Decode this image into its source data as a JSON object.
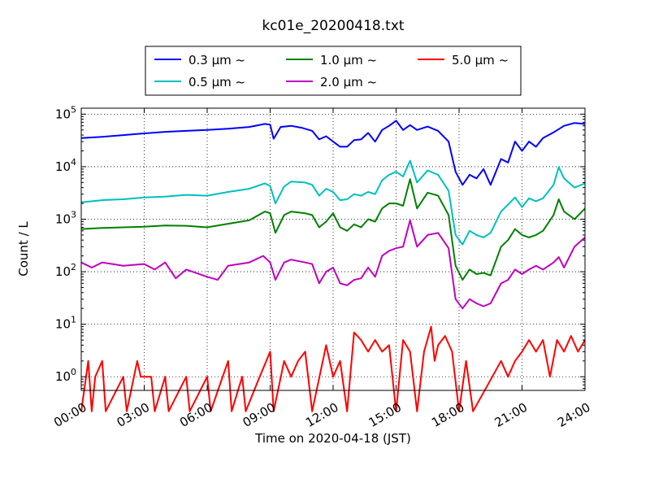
{
  "chart_data": {
    "type": "line",
    "title": "kc01e_20200418.txt",
    "xlabel": "Time on 2020-04-18 (JST)",
    "ylabel": "Count / L",
    "y_scale": "log",
    "ylim": [
      0.55,
      130000
    ],
    "xlim": [
      "00:00",
      "24:00"
    ],
    "x_ticks": [
      "00:00",
      "03:00",
      "06:00",
      "09:00",
      "12:00",
      "15:00",
      "18:00",
      "21:00",
      "24:00"
    ],
    "y_ticks": [
      {
        "value": 1,
        "base": "10",
        "exp": "0"
      },
      {
        "value": 10,
        "base": "10",
        "exp": "1"
      },
      {
        "value": 100,
        "base": "10",
        "exp": "2"
      },
      {
        "value": 1000,
        "base": "10",
        "exp": "3"
      },
      {
        "value": 10000,
        "base": "10",
        "exp": "4"
      },
      {
        "value": 100000,
        "base": "10",
        "exp": "5"
      }
    ],
    "grid": true,
    "legend_position": "top-center",
    "legend_entries_layout": [
      [
        "0.3",
        "1.0",
        "5.0"
      ],
      [
        "0.5",
        "2.0"
      ]
    ],
    "series": [
      {
        "name": "0.3 μm ~",
        "legend_value": "0.3",
        "color": "#0000ff",
        "points": [
          [
            "00:00",
            35000
          ],
          [
            "01:00",
            37000
          ],
          [
            "02:00",
            40000
          ],
          [
            "03:00",
            43000
          ],
          [
            "04:00",
            46000
          ],
          [
            "05:00",
            48000
          ],
          [
            "06:00",
            50000
          ],
          [
            "07:00",
            53000
          ],
          [
            "08:00",
            57000
          ],
          [
            "08:45",
            65000
          ],
          [
            "09:00",
            63000
          ],
          [
            "09:10",
            34000
          ],
          [
            "09:30",
            57000
          ],
          [
            "10:00",
            60000
          ],
          [
            "10:30",
            55000
          ],
          [
            "11:00",
            48000
          ],
          [
            "11:20",
            33000
          ],
          [
            "11:40",
            38000
          ],
          [
            "12:00",
            30000
          ],
          [
            "12:20",
            24000
          ],
          [
            "12:40",
            24000
          ],
          [
            "13:00",
            32000
          ],
          [
            "13:20",
            33000
          ],
          [
            "13:40",
            44000
          ],
          [
            "14:00",
            30000
          ],
          [
            "14:20",
            50000
          ],
          [
            "14:40",
            60000
          ],
          [
            "15:00",
            75000
          ],
          [
            "15:20",
            50000
          ],
          [
            "15:40",
            62000
          ],
          [
            "16:00",
            50000
          ],
          [
            "16:30",
            58000
          ],
          [
            "17:00",
            48000
          ],
          [
            "17:30",
            30000
          ],
          [
            "17:50",
            8000
          ],
          [
            "18:10",
            4500
          ],
          [
            "18:30",
            7000
          ],
          [
            "18:50",
            6000
          ],
          [
            "19:10",
            9000
          ],
          [
            "19:30",
            4500
          ],
          [
            "20:00",
            14000
          ],
          [
            "20:20",
            12000
          ],
          [
            "20:40",
            30000
          ],
          [
            "21:00",
            20000
          ],
          [
            "21:20",
            30000
          ],
          [
            "21:40",
            24000
          ],
          [
            "22:00",
            35000
          ],
          [
            "22:30",
            45000
          ],
          [
            "23:00",
            60000
          ],
          [
            "23:30",
            68000
          ],
          [
            "24:00",
            65000
          ]
        ]
      },
      {
        "name": "0.5 μm ~",
        "legend_value": "0.5",
        "color": "#00bfbf",
        "points": [
          [
            "00:00",
            2100
          ],
          [
            "01:00",
            2300
          ],
          [
            "02:00",
            2400
          ],
          [
            "03:00",
            2600
          ],
          [
            "04:00",
            2700
          ],
          [
            "05:00",
            2900
          ],
          [
            "06:00",
            2800
          ],
          [
            "07:00",
            3300
          ],
          [
            "08:00",
            3800
          ],
          [
            "08:45",
            4800
          ],
          [
            "09:00",
            4300
          ],
          [
            "09:15",
            2000
          ],
          [
            "09:40",
            4200
          ],
          [
            "10:00",
            5200
          ],
          [
            "10:40",
            5000
          ],
          [
            "11:00",
            4500
          ],
          [
            "11:20",
            2800
          ],
          [
            "11:40",
            3800
          ],
          [
            "12:00",
            3300
          ],
          [
            "12:20",
            2300
          ],
          [
            "12:40",
            2400
          ],
          [
            "13:00",
            3000
          ],
          [
            "13:20",
            2800
          ],
          [
            "13:40",
            3300
          ],
          [
            "14:00",
            3000
          ],
          [
            "14:20",
            5500
          ],
          [
            "14:40",
            7000
          ],
          [
            "15:00",
            8000
          ],
          [
            "15:20",
            6500
          ],
          [
            "15:40",
            13000
          ],
          [
            "16:00",
            5000
          ],
          [
            "16:30",
            8500
          ],
          [
            "17:00",
            7000
          ],
          [
            "17:30",
            3500
          ],
          [
            "17:50",
            500
          ],
          [
            "18:10",
            330
          ],
          [
            "18:30",
            600
          ],
          [
            "18:50",
            500
          ],
          [
            "19:10",
            450
          ],
          [
            "19:30",
            550
          ],
          [
            "20:00",
            1400
          ],
          [
            "20:20",
            1900
          ],
          [
            "20:40",
            2600
          ],
          [
            "21:00",
            1700
          ],
          [
            "21:20",
            2500
          ],
          [
            "21:40",
            2200
          ],
          [
            "22:00",
            2500
          ],
          [
            "22:30",
            4500
          ],
          [
            "22:45",
            9800
          ],
          [
            "23:00",
            6000
          ],
          [
            "23:30",
            4000
          ],
          [
            "24:00",
            4800
          ]
        ]
      },
      {
        "name": "1.0 μm ~",
        "legend_value": "1.0",
        "color": "#008000",
        "points": [
          [
            "00:00",
            650
          ],
          [
            "01:00",
            680
          ],
          [
            "02:00",
            700
          ],
          [
            "03:00",
            720
          ],
          [
            "04:00",
            760
          ],
          [
            "05:00",
            750
          ],
          [
            "06:00",
            700
          ],
          [
            "07:00",
            820
          ],
          [
            "08:00",
            950
          ],
          [
            "08:45",
            1400
          ],
          [
            "09:00",
            1300
          ],
          [
            "09:15",
            550
          ],
          [
            "09:40",
            1200
          ],
          [
            "10:00",
            1400
          ],
          [
            "10:40",
            1300
          ],
          [
            "11:00",
            1200
          ],
          [
            "11:20",
            700
          ],
          [
            "11:40",
            900
          ],
          [
            "12:00",
            1300
          ],
          [
            "12:20",
            700
          ],
          [
            "12:40",
            600
          ],
          [
            "13:00",
            800
          ],
          [
            "13:20",
            700
          ],
          [
            "13:40",
            1000
          ],
          [
            "14:00",
            900
          ],
          [
            "14:20",
            1600
          ],
          [
            "14:40",
            2000
          ],
          [
            "15:00",
            2000
          ],
          [
            "15:20",
            1800
          ],
          [
            "15:40",
            5800
          ],
          [
            "16:00",
            1600
          ],
          [
            "16:30",
            3200
          ],
          [
            "17:00",
            2800
          ],
          [
            "17:30",
            1200
          ],
          [
            "17:50",
            130
          ],
          [
            "18:10",
            70
          ],
          [
            "18:30",
            110
          ],
          [
            "18:50",
            90
          ],
          [
            "19:10",
            95
          ],
          [
            "19:30",
            85
          ],
          [
            "20:00",
            300
          ],
          [
            "20:20",
            400
          ],
          [
            "20:40",
            650
          ],
          [
            "21:00",
            500
          ],
          [
            "21:20",
            450
          ],
          [
            "21:40",
            500
          ],
          [
            "22:00",
            600
          ],
          [
            "22:30",
            1200
          ],
          [
            "22:45",
            2400
          ],
          [
            "23:00",
            1400
          ],
          [
            "23:30",
            1000
          ],
          [
            "24:00",
            1600
          ]
        ]
      },
      {
        "name": "2.0 μm ~",
        "legend_value": "2.0",
        "color": "#bf00bf",
        "points": [
          [
            "00:00",
            150
          ],
          [
            "00:30",
            120
          ],
          [
            "01:00",
            150
          ],
          [
            "02:00",
            130
          ],
          [
            "03:00",
            140
          ],
          [
            "03:30",
            110
          ],
          [
            "04:00",
            150
          ],
          [
            "04:30",
            75
          ],
          [
            "05:00",
            110
          ],
          [
            "06:00",
            80
          ],
          [
            "06:30",
            70
          ],
          [
            "07:00",
            130
          ],
          [
            "08:00",
            150
          ],
          [
            "08:40",
            200
          ],
          [
            "09:00",
            150
          ],
          [
            "09:15",
            70
          ],
          [
            "09:40",
            150
          ],
          [
            "10:00",
            170
          ],
          [
            "10:40",
            150
          ],
          [
            "11:00",
            140
          ],
          [
            "11:20",
            60
          ],
          [
            "11:40",
            100
          ],
          [
            "12:00",
            120
          ],
          [
            "12:20",
            60
          ],
          [
            "12:40",
            55
          ],
          [
            "13:00",
            70
          ],
          [
            "13:20",
            75
          ],
          [
            "13:40",
            120
          ],
          [
            "14:00",
            80
          ],
          [
            "14:20",
            200
          ],
          [
            "14:40",
            250
          ],
          [
            "15:00",
            280
          ],
          [
            "15:20",
            300
          ],
          [
            "15:40",
            950
          ],
          [
            "16:00",
            300
          ],
          [
            "16:30",
            500
          ],
          [
            "17:00",
            550
          ],
          [
            "17:30",
            280
          ],
          [
            "17:50",
            30
          ],
          [
            "18:10",
            20
          ],
          [
            "18:30",
            30
          ],
          [
            "18:50",
            25
          ],
          [
            "19:10",
            22
          ],
          [
            "19:30",
            25
          ],
          [
            "20:00",
            60
          ],
          [
            "20:20",
            70
          ],
          [
            "20:40",
            110
          ],
          [
            "21:00",
            90
          ],
          [
            "21:20",
            110
          ],
          [
            "21:40",
            130
          ],
          [
            "22:00",
            110
          ],
          [
            "22:30",
            150
          ],
          [
            "22:45",
            190
          ],
          [
            "23:00",
            120
          ],
          [
            "23:30",
            300
          ],
          [
            "24:00",
            450
          ]
        ]
      },
      {
        "name": "5.0 μm ~",
        "legend_value": "5.0",
        "color": "#ff0000",
        "points": [
          [
            "00:00",
            0
          ],
          [
            "00:20",
            2
          ],
          [
            "00:30",
            0
          ],
          [
            "00:40",
            1
          ],
          [
            "01:00",
            2
          ],
          [
            "01:10",
            0
          ],
          [
            "02:00",
            1
          ],
          [
            "02:10",
            0
          ],
          [
            "02:40",
            2
          ],
          [
            "02:50",
            1
          ],
          [
            "03:20",
            1
          ],
          [
            "03:30",
            0
          ],
          [
            "04:00",
            1
          ],
          [
            "04:10",
            0
          ],
          [
            "05:00",
            1
          ],
          [
            "05:10",
            0
          ],
          [
            "06:00",
            1
          ],
          [
            "06:10",
            0
          ],
          [
            "07:00",
            2
          ],
          [
            "07:10",
            0
          ],
          [
            "07:40",
            1
          ],
          [
            "07:50",
            0
          ],
          [
            "08:30",
            1
          ],
          [
            "09:00",
            3
          ],
          [
            "09:10",
            0
          ],
          [
            "09:40",
            2
          ],
          [
            "10:00",
            1
          ],
          [
            "10:20",
            2
          ],
          [
            "10:40",
            3
          ],
          [
            "11:00",
            0
          ],
          [
            "11:40",
            4
          ],
          [
            "12:00",
            1
          ],
          [
            "12:20",
            2
          ],
          [
            "12:40",
            0
          ],
          [
            "13:00",
            7
          ],
          [
            "13:20",
            5
          ],
          [
            "13:40",
            3
          ],
          [
            "14:00",
            5
          ],
          [
            "14:20",
            3
          ],
          [
            "14:40",
            4
          ],
          [
            "15:00",
            0
          ],
          [
            "15:20",
            5
          ],
          [
            "15:40",
            3
          ],
          [
            "16:00",
            0
          ],
          [
            "16:20",
            3
          ],
          [
            "16:40",
            9
          ],
          [
            "16:50",
            2
          ],
          [
            "17:00",
            4
          ],
          [
            "17:20",
            6
          ],
          [
            "17:40",
            3
          ],
          [
            "18:00",
            0
          ],
          [
            "18:20",
            2
          ],
          [
            "18:40",
            0
          ],
          [
            "20:00",
            2
          ],
          [
            "20:20",
            1
          ],
          [
            "20:40",
            2
          ],
          [
            "21:00",
            3
          ],
          [
            "21:20",
            5
          ],
          [
            "21:40",
            3
          ],
          [
            "22:00",
            5
          ],
          [
            "22:20",
            1
          ],
          [
            "22:40",
            5
          ],
          [
            "23:00",
            3
          ],
          [
            "23:20",
            6
          ],
          [
            "23:40",
            3
          ],
          [
            "24:00",
            5
          ]
        ]
      }
    ]
  }
}
